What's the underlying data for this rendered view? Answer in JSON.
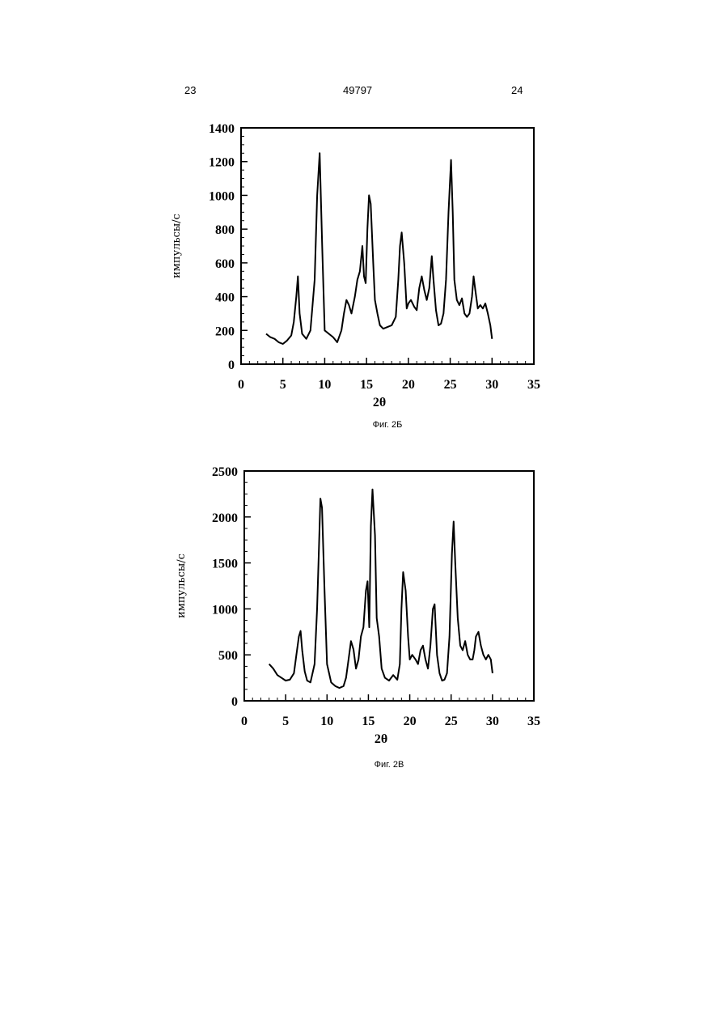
{
  "header": {
    "left": "23",
    "center": "49797",
    "right": "24"
  },
  "chart_data": [
    {
      "type": "line",
      "caption": "Фиг. 2Б",
      "xlabel": "2θ",
      "ylabel": "импульсы/с",
      "xlim": [
        0,
        35
      ],
      "ylim": [
        0,
        1400
      ],
      "xticks": [
        0,
        5,
        10,
        15,
        20,
        25,
        30,
        35
      ],
      "yticks": [
        0,
        200,
        400,
        600,
        800,
        1000,
        1200,
        1400
      ],
      "grid": false,
      "line_color": "#000000",
      "x": [
        3,
        3.5,
        4,
        4.5,
        5,
        5.5,
        6,
        6.3,
        6.6,
        6.8,
        7,
        7.3,
        7.8,
        8.3,
        8.8,
        9.1,
        9.4,
        9.7,
        10,
        10.5,
        11,
        11.5,
        12,
        12.3,
        12.6,
        12.9,
        13.2,
        13.6,
        13.9,
        14.2,
        14.5,
        14.7,
        14.9,
        15.1,
        15.3,
        15.5,
        15.8,
        16,
        16.3,
        16.6,
        17,
        17.5,
        18,
        18.5,
        18.8,
        19,
        19.2,
        19.5,
        19.8,
        20,
        20.3,
        20.7,
        21,
        21.3,
        21.6,
        21.9,
        22.2,
        22.5,
        22.8,
        23,
        23.3,
        23.6,
        23.9,
        24.2,
        24.5,
        24.8,
        25.1,
        25.3,
        25.5,
        25.8,
        26.1,
        26.4,
        26.7,
        27,
        27.3,
        27.6,
        27.8,
        28,
        28.3,
        28.6,
        28.9,
        29.2,
        29.5,
        29.8,
        30
      ],
      "y": [
        180,
        160,
        150,
        130,
        120,
        140,
        170,
        250,
        400,
        520,
        300,
        180,
        150,
        200,
        500,
        1000,
        1250,
        700,
        200,
        180,
        160,
        130,
        200,
        300,
        380,
        350,
        300,
        400,
        500,
        550,
        700,
        520,
        480,
        800,
        1000,
        950,
        600,
        380,
        300,
        230,
        210,
        220,
        230,
        280,
        500,
        700,
        780,
        600,
        330,
        360,
        380,
        340,
        320,
        450,
        520,
        440,
        380,
        450,
        640,
        500,
        320,
        230,
        240,
        300,
        500,
        900,
        1210,
        900,
        500,
        380,
        350,
        390,
        300,
        280,
        300,
        400,
        520,
        440,
        330,
        350,
        330,
        360,
        300,
        230,
        150
      ]
    },
    {
      "type": "line",
      "caption": "Фиг. 2В",
      "xlabel": "2θ",
      "ylabel": "импульсы/с",
      "xlim": [
        0,
        35
      ],
      "ylim": [
        0,
        2500
      ],
      "xticks": [
        0,
        5,
        10,
        15,
        20,
        25,
        30,
        35
      ],
      "yticks": [
        0,
        500,
        1000,
        1500,
        2000,
        2500
      ],
      "grid": false,
      "line_color": "#000000",
      "x": [
        3,
        3.5,
        4,
        4.5,
        5,
        5.5,
        6,
        6.3,
        6.6,
        6.8,
        7,
        7.3,
        7.6,
        8,
        8.5,
        8.8,
        9,
        9.2,
        9.4,
        9.7,
        10,
        10.5,
        11,
        11.5,
        12,
        12.3,
        12.6,
        12.9,
        13.2,
        13.5,
        13.8,
        14.1,
        14.4,
        14.7,
        14.9,
        15.1,
        15.3,
        15.5,
        15.8,
        16,
        16.3,
        16.6,
        17,
        17.5,
        18,
        18.5,
        18.8,
        19,
        19.2,
        19.5,
        19.8,
        20,
        20.3,
        20.7,
        21,
        21.3,
        21.6,
        21.9,
        22.2,
        22.5,
        22.8,
        23,
        23.3,
        23.6,
        23.9,
        24.2,
        24.5,
        24.8,
        25.1,
        25.3,
        25.5,
        25.8,
        26.1,
        26.4,
        26.7,
        27,
        27.3,
        27.6,
        27.8,
        28,
        28.3,
        28.6,
        28.9,
        29.2,
        29.5,
        29.8,
        30
      ],
      "y": [
        400,
        350,
        280,
        250,
        220,
        230,
        300,
        500,
        700,
        760,
        550,
        320,
        220,
        200,
        400,
        1000,
        1600,
        2200,
        2100,
        1200,
        400,
        200,
        160,
        140,
        160,
        250,
        450,
        650,
        560,
        350,
        450,
        700,
        800,
        1200,
        1300,
        800,
        1900,
        2300,
        1800,
        900,
        700,
        350,
        250,
        220,
        280,
        230,
        400,
        1000,
        1400,
        1200,
        700,
        450,
        500,
        450,
        400,
        550,
        600,
        450,
        350,
        600,
        1000,
        1050,
        500,
        300,
        220,
        230,
        300,
        700,
        1600,
        1950,
        1500,
        900,
        600,
        550,
        650,
        500,
        450,
        450,
        550,
        700,
        750,
        600,
        500,
        450,
        500,
        450,
        300
      ]
    }
  ]
}
